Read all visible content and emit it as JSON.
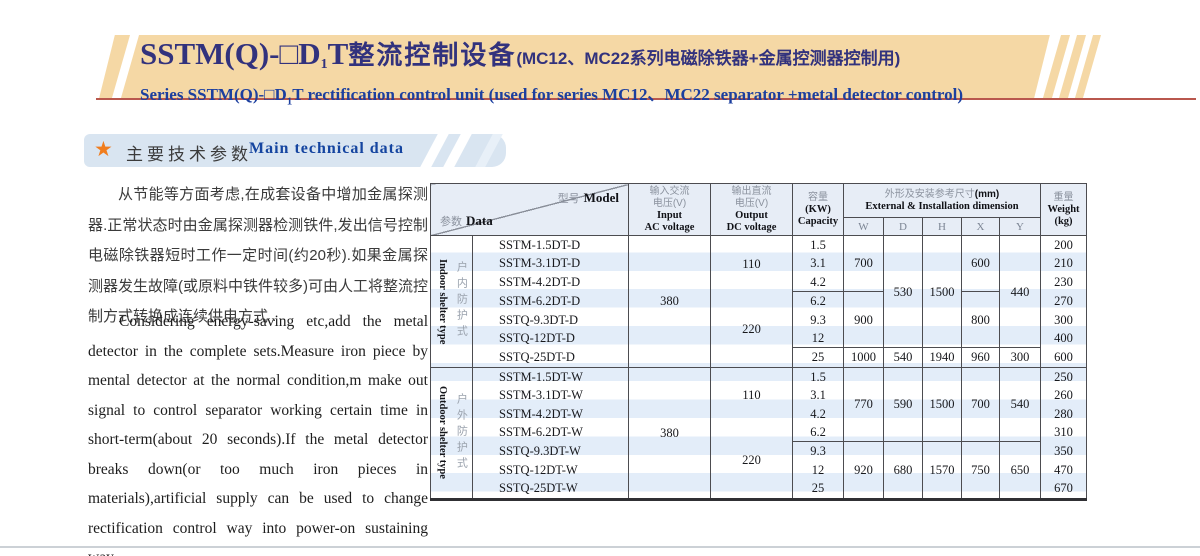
{
  "header": {
    "title_latin": "SSTM(Q)-□D",
    "title_sub": "1",
    "title_latin2": "T",
    "title_cjk": "整流控制设备",
    "title_paren": "(MC12、MC22系列电磁除铁器+金属控测器控制用)",
    "subtitle_pre": "Series SSTM(Q)-□D",
    "subtitle_sub": "1",
    "subtitle_post": "T rectification control unit (used for series MC12、MC22 separator +metal detector control)"
  },
  "section": {
    "star": "★",
    "title_zh": "主要技术参数",
    "title_en": "Main technical data"
  },
  "intro": {
    "zh": "从节能等方面考虑,在成套设备中增加金属探测器.正常状态时由金属探测器检测铁件,发出信号控制电磁除铁器短时工作一定时间(约20秒).如果金属探测器发生故障(或原料中铁件较多)可由人工将整流控制方式转换成连续供电方式 .",
    "en": "Considering energy-saving etc,add the metal detector in the complete sets.Measure iron piece by mental detector at the normal condition,m make out signal to control separator working certain time in short-term(about 20 seconds).If the metal detector breaks down(or too much iron pieces in materials),artificial supply can be used to change rectification control way into power-on sustaining way."
  },
  "table": {
    "diag": {
      "zh_top": "型号",
      "en_top": "Model",
      "zh_bottom": "参数",
      "en_bottom": "Data"
    },
    "col_input": {
      "zh1": "输入交流",
      "zh2": "电压(V)",
      "en1": "Input",
      "en2": "AC voltage"
    },
    "col_output": {
      "zh1": "输出直流",
      "zh2": "电压(V)",
      "en1": "Output",
      "en2": "DC voltage"
    },
    "col_capacity": {
      "zh": "容量",
      "unit": "(KW)",
      "en": "Capacity"
    },
    "col_dims": {
      "zh": "外形及安装参考尺寸",
      "mm": "(mm)",
      "en": "External & Installation dimension",
      "sub": [
        "W",
        "D",
        "H",
        "X",
        "Y"
      ]
    },
    "col_weight": {
      "zh": "重量",
      "en": "Weight",
      "unit": "(kg)"
    },
    "groups": [
      {
        "label_en": "Indoor shelter type",
        "label_zh": "户内防护式",
        "input": "380",
        "output": [
          "110",
          "220"
        ],
        "models": [
          "SSTM-1.5DT-D",
          "SSTM-3.1DT-D",
          "SSTM-4.2DT-D",
          "SSTM-6.2DT-D",
          "SSTQ-9.3DT-D",
          "SSTQ-12DT-D",
          "SSTQ-25DT-D"
        ],
        "capacities": [
          "1.5",
          "3.1",
          "4.2",
          "6.2",
          "9.3",
          "12",
          "25"
        ],
        "w": [
          "700",
          "900",
          "1000"
        ],
        "d": [
          "530",
          "540"
        ],
        "h": [
          "1500",
          "1940"
        ],
        "x": [
          "600",
          "800",
          "960"
        ],
        "y": [
          "440",
          "300"
        ],
        "weights": [
          "200",
          "210",
          "230",
          "270",
          "300",
          "400",
          "600"
        ]
      },
      {
        "label_en": "Outdoor shelter type",
        "label_zh": "户外防护式",
        "input": "380",
        "output": [
          "110",
          "220"
        ],
        "models": [
          "SSTM-1.5DT-W",
          "SSTM-3.1DT-W",
          "SSTM-4.2DT-W",
          "SSTM-6.2DT-W",
          "SSTQ-9.3DT-W",
          "SSTQ-12DT-W",
          "SSTQ-25DT-W"
        ],
        "capacities": [
          "1.5",
          "3.1",
          "4.2",
          "6.2",
          "9.3",
          "12",
          "25"
        ],
        "w": [
          "770",
          "920"
        ],
        "d": [
          "590",
          "680"
        ],
        "h": [
          "1500",
          "1570"
        ],
        "x": [
          "700",
          "750"
        ],
        "y": [
          "540",
          "650"
        ],
        "weights": [
          "250",
          "260",
          "280",
          "310",
          "350",
          "470",
          "670"
        ]
      }
    ]
  }
}
